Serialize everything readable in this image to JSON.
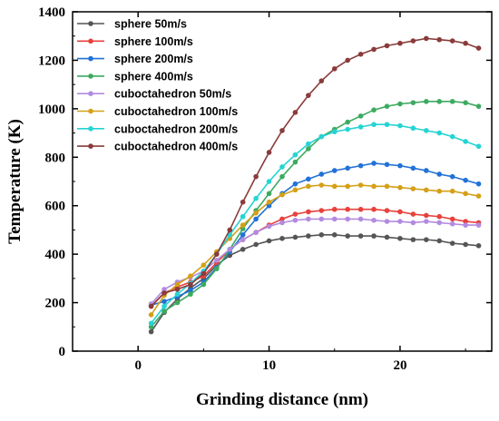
{
  "chart_data": {
    "type": "line",
    "title": "",
    "xlabel": "Grinding distance (nm)",
    "ylabel": "Temperature (K)",
    "xlim": [
      -5,
      27
    ],
    "ylim": [
      0,
      1400
    ],
    "xticks": [
      0,
      10,
      20
    ],
    "yticks": [
      0,
      200,
      400,
      600,
      800,
      1000,
      1200,
      1400
    ],
    "x": [
      1,
      2,
      3,
      4,
      5,
      6,
      7,
      8,
      9,
      10,
      11,
      12,
      13,
      14,
      15,
      16,
      17,
      18,
      19,
      20,
      21,
      22,
      23,
      24,
      25,
      26
    ],
    "grid": false,
    "legend_position": "top-left",
    "series": [
      {
        "name": "sphere 50m/s",
        "color": "#555555",
        "marker": "circle",
        "values": [
          80,
          160,
          215,
          260,
          300,
          355,
          395,
          420,
          440,
          455,
          465,
          470,
          475,
          480,
          480,
          475,
          475,
          475,
          470,
          465,
          460,
          460,
          455,
          445,
          440,
          435
        ]
      },
      {
        "name": "sphere 100m/s",
        "color": "#e8413c",
        "marker": "circle",
        "values": [
          185,
          240,
          265,
          285,
          310,
          365,
          420,
          460,
          490,
          520,
          545,
          565,
          575,
          580,
          585,
          585,
          585,
          585,
          580,
          575,
          565,
          560,
          555,
          545,
          535,
          530
        ]
      },
      {
        "name": "sphere 200m/s",
        "color": "#2272d6",
        "marker": "circle",
        "values": [
          190,
          205,
          225,
          250,
          285,
          345,
          410,
          480,
          545,
          600,
          650,
          690,
          710,
          730,
          745,
          755,
          765,
          775,
          770,
          765,
          755,
          745,
          730,
          720,
          705,
          690
        ]
      },
      {
        "name": "sphere 400m/s",
        "color": "#3daa60",
        "marker": "circle",
        "values": [
          100,
          165,
          200,
          235,
          275,
          340,
          420,
          505,
          580,
          650,
          720,
          780,
          835,
          885,
          915,
          945,
          970,
          995,
          1010,
          1020,
          1025,
          1030,
          1030,
          1030,
          1025,
          1010
        ]
      },
      {
        "name": "cuboctahedron 50m/s",
        "color": "#b28be0",
        "marker": "circle",
        "values": [
          195,
          255,
          285,
          305,
          330,
          375,
          420,
          460,
          490,
          515,
          530,
          540,
          545,
          545,
          545,
          545,
          545,
          540,
          535,
          535,
          530,
          535,
          530,
          525,
          520,
          520
        ]
      },
      {
        "name": "cuboctahedron 100m/s",
        "color": "#d4a017",
        "marker": "circle",
        "values": [
          150,
          230,
          275,
          310,
          355,
          410,
          465,
          520,
          570,
          615,
          645,
          665,
          680,
          685,
          680,
          680,
          685,
          680,
          680,
          675,
          670,
          665,
          660,
          660,
          650,
          640
        ]
      },
      {
        "name": "cuboctahedron 200m/s",
        "color": "#27d3d3",
        "marker": "circle",
        "values": [
          115,
          185,
          235,
          280,
          330,
          400,
          480,
          555,
          630,
          700,
          760,
          810,
          855,
          885,
          905,
          915,
          925,
          935,
          935,
          930,
          920,
          910,
          900,
          885,
          865,
          845
        ]
      },
      {
        "name": "cuboctahedron 400m/s",
        "color": "#8a3b3b",
        "marker": "circle",
        "values": [
          185,
          240,
          255,
          275,
          320,
          400,
          500,
          615,
          720,
          820,
          910,
          985,
          1055,
          1115,
          1165,
          1200,
          1225,
          1245,
          1260,
          1270,
          1280,
          1290,
          1285,
          1280,
          1270,
          1250
        ]
      }
    ]
  }
}
